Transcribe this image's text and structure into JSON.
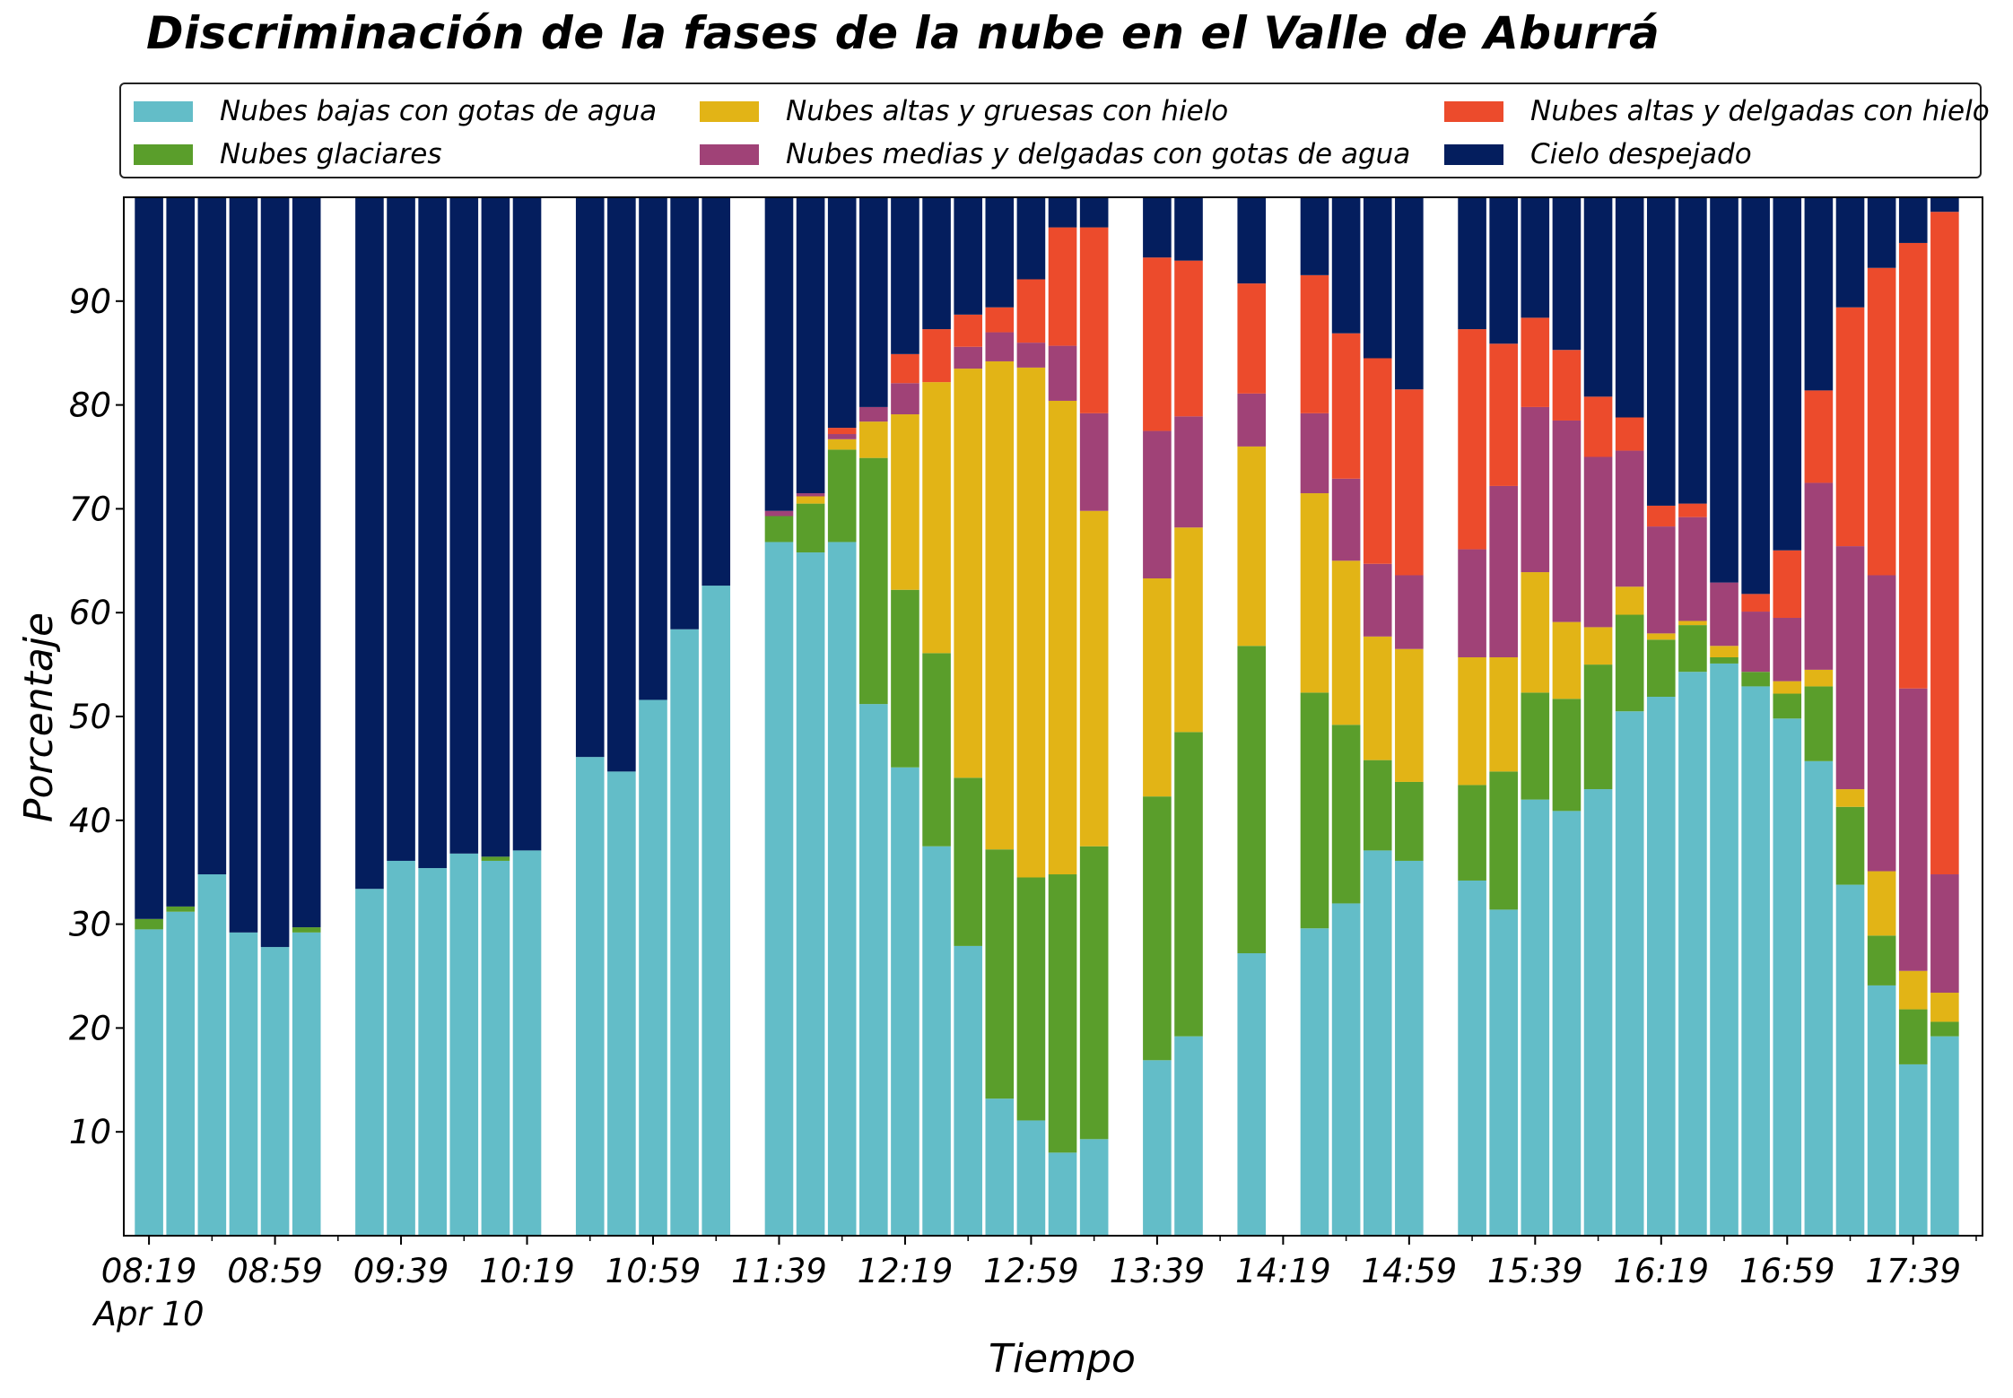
{
  "chart_data": {
    "type": "bar",
    "stacked": true,
    "title": "Discriminación de la fases de la nube en el Valle de Aburrá",
    "xlabel": "Tiempo",
    "ylabel": "Porcentaje",
    "ylim": [
      0,
      100
    ],
    "yticks": [
      10,
      20,
      30,
      40,
      50,
      60,
      70,
      80,
      90
    ],
    "xlim": [
      "08:11",
      "18:01"
    ],
    "bar_interval_minutes": 10,
    "xticks": [
      {
        "time": "08:19",
        "label": "08:19",
        "sublabel": "Apr 10"
      },
      {
        "time": "08:59",
        "label": "08:59"
      },
      {
        "time": "09:39",
        "label": "09:39"
      },
      {
        "time": "10:19",
        "label": "10:19"
      },
      {
        "time": "10:59",
        "label": "10:59"
      },
      {
        "time": "11:39",
        "label": "11:39"
      },
      {
        "time": "12:19",
        "label": "12:19"
      },
      {
        "time": "12:59",
        "label": "12:59"
      },
      {
        "time": "13:39",
        "label": "13:39"
      },
      {
        "time": "14:19",
        "label": "14:19"
      },
      {
        "time": "14:59",
        "label": "14:59"
      },
      {
        "time": "15:39",
        "label": "15:39"
      },
      {
        "time": "16:19",
        "label": "16:19"
      },
      {
        "time": "16:59",
        "label": "16:59"
      },
      {
        "time": "17:39",
        "label": "17:39"
      }
    ],
    "legend_position": "top",
    "series": [
      {
        "name": "Nubes bajas con gotas de agua",
        "color": "#63bdc8"
      },
      {
        "name": "Nubes glaciares",
        "color": "#5a9e2b"
      },
      {
        "name": "Nubes altas y gruesas con hielo",
        "color": "#e2b416"
      },
      {
        "name": "Nubes medias y delgadas con gotas de agua",
        "color": "#a04277"
      },
      {
        "name": "Nubes altas y delgadas con hielo",
        "color": "#ec4b2c"
      },
      {
        "name": "Cielo despejado",
        "color": "#041e5e"
      }
    ],
    "series_order_note": "values per bar: [bajas, glaciares, altas_gruesas, medias_delgadas, altas_delgadas, despejado]",
    "bars": [
      {
        "time": "08:19",
        "values": [
          29.5,
          1.0,
          0.0,
          0.0,
          0.0,
          69.5
        ]
      },
      {
        "time": "08:29",
        "values": [
          31.2,
          0.5,
          0.0,
          0.0,
          0.0,
          68.3
        ]
      },
      {
        "time": "08:39",
        "values": [
          34.8,
          0.0,
          0.0,
          0.0,
          0.0,
          65.2
        ]
      },
      {
        "time": "08:49",
        "values": [
          29.2,
          0.0,
          0.0,
          0.0,
          0.0,
          70.8
        ]
      },
      {
        "time": "08:59",
        "values": [
          27.8,
          0.0,
          0.0,
          0.0,
          0.0,
          72.2
        ]
      },
      {
        "time": "09:09",
        "values": [
          29.2,
          0.5,
          0.0,
          0.0,
          0.0,
          70.3
        ]
      },
      {
        "time": "09:29",
        "values": [
          33.4,
          0.0,
          0.0,
          0.0,
          0.0,
          66.6
        ]
      },
      {
        "time": "09:39",
        "values": [
          36.1,
          0.0,
          0.0,
          0.0,
          0.0,
          63.9
        ]
      },
      {
        "time": "09:49",
        "values": [
          35.4,
          0.0,
          0.0,
          0.0,
          0.0,
          64.6
        ]
      },
      {
        "time": "09:59",
        "values": [
          36.8,
          0.0,
          0.0,
          0.0,
          0.0,
          63.2
        ]
      },
      {
        "time": "10:09",
        "values": [
          36.1,
          0.4,
          0.0,
          0.0,
          0.0,
          63.5
        ]
      },
      {
        "time": "10:19",
        "values": [
          37.1,
          0.0,
          0.0,
          0.0,
          0.0,
          62.9
        ]
      },
      {
        "time": "10:39",
        "values": [
          46.1,
          0.0,
          0.0,
          0.0,
          0.0,
          53.9
        ]
      },
      {
        "time": "10:49",
        "values": [
          44.7,
          0.0,
          0.0,
          0.0,
          0.0,
          55.3
        ]
      },
      {
        "time": "10:59",
        "values": [
          51.6,
          0.0,
          0.0,
          0.0,
          0.0,
          48.4
        ]
      },
      {
        "time": "11:09",
        "values": [
          58.4,
          0.0,
          0.0,
          0.0,
          0.0,
          41.6
        ]
      },
      {
        "time": "11:19",
        "values": [
          62.6,
          0.0,
          0.0,
          0.0,
          0.0,
          37.4
        ]
      },
      {
        "time": "11:39",
        "values": [
          66.8,
          2.5,
          0.0,
          0.5,
          0.0,
          30.2
        ]
      },
      {
        "time": "11:49",
        "values": [
          65.8,
          4.7,
          0.7,
          0.3,
          0.0,
          28.5
        ]
      },
      {
        "time": "11:59",
        "values": [
          66.8,
          8.9,
          1.0,
          0.5,
          0.6,
          22.2
        ]
      },
      {
        "time": "12:09",
        "values": [
          51.2,
          23.7,
          3.5,
          1.4,
          0.0,
          20.2
        ]
      },
      {
        "time": "12:19",
        "values": [
          45.1,
          17.1,
          16.9,
          3.0,
          2.8,
          15.1
        ]
      },
      {
        "time": "12:29",
        "values": [
          37.5,
          18.6,
          26.1,
          0.0,
          5.1,
          12.7
        ]
      },
      {
        "time": "12:39",
        "values": [
          27.9,
          16.2,
          39.4,
          2.1,
          3.1,
          11.3
        ]
      },
      {
        "time": "12:49",
        "values": [
          13.2,
          24.0,
          47.0,
          2.8,
          2.4,
          10.6
        ]
      },
      {
        "time": "12:59",
        "values": [
          11.1,
          23.4,
          49.1,
          2.4,
          6.1,
          7.9
        ]
      },
      {
        "time": "13:09",
        "values": [
          8.0,
          26.8,
          45.6,
          5.3,
          11.4,
          2.9
        ]
      },
      {
        "time": "13:19",
        "values": [
          9.3,
          28.2,
          32.3,
          9.4,
          17.9,
          2.9
        ]
      },
      {
        "time": "13:39",
        "values": [
          16.9,
          25.4,
          21.0,
          14.2,
          16.7,
          5.8
        ]
      },
      {
        "time": "13:49",
        "values": [
          19.2,
          29.3,
          19.7,
          10.7,
          15.0,
          6.1
        ]
      },
      {
        "time": "14:09",
        "values": [
          27.2,
          29.6,
          19.2,
          5.1,
          10.6,
          8.3
        ]
      },
      {
        "time": "14:29",
        "values": [
          29.6,
          22.7,
          19.2,
          7.7,
          13.3,
          7.5
        ]
      },
      {
        "time": "14:39",
        "values": [
          32.0,
          17.2,
          15.8,
          7.9,
          14.0,
          13.1
        ]
      },
      {
        "time": "14:49",
        "values": [
          37.1,
          8.7,
          11.9,
          7.0,
          19.8,
          15.5
        ]
      },
      {
        "time": "14:59",
        "values": [
          36.1,
          7.6,
          12.8,
          7.1,
          17.9,
          18.5
        ]
      },
      {
        "time": "15:19",
        "values": [
          34.2,
          9.2,
          12.3,
          10.4,
          21.2,
          12.7
        ]
      },
      {
        "time": "15:29",
        "values": [
          31.4,
          13.3,
          11.0,
          16.5,
          13.7,
          14.1
        ]
      },
      {
        "time": "15:39",
        "values": [
          42.0,
          10.3,
          11.6,
          15.9,
          8.6,
          11.6
        ]
      },
      {
        "time": "15:49",
        "values": [
          40.9,
          10.8,
          7.4,
          19.4,
          6.8,
          14.7
        ]
      },
      {
        "time": "15:59",
        "values": [
          43.0,
          12.0,
          3.6,
          16.4,
          5.8,
          19.2
        ]
      },
      {
        "time": "16:09",
        "values": [
          50.5,
          9.3,
          2.7,
          13.1,
          3.2,
          21.2
        ]
      },
      {
        "time": "16:19",
        "values": [
          51.9,
          5.5,
          0.6,
          10.3,
          2.0,
          29.7
        ]
      },
      {
        "time": "16:29",
        "values": [
          54.3,
          4.5,
          0.4,
          10.0,
          1.3,
          29.5
        ]
      },
      {
        "time": "16:39",
        "values": [
          55.1,
          0.6,
          1.1,
          6.1,
          0.0,
          37.1
        ]
      },
      {
        "time": "16:49",
        "values": [
          52.9,
          1.4,
          0.0,
          5.8,
          1.7,
          38.2
        ]
      },
      {
        "time": "16:59",
        "values": [
          49.8,
          2.4,
          1.2,
          6.1,
          6.5,
          34.0
        ]
      },
      {
        "time": "17:09",
        "values": [
          45.7,
          7.2,
          1.6,
          18.0,
          8.9,
          18.6
        ]
      },
      {
        "time": "17:19",
        "values": [
          33.8,
          7.5,
          1.7,
          23.4,
          23.0,
          10.6
        ]
      },
      {
        "time": "17:29",
        "values": [
          24.1,
          4.8,
          6.2,
          28.5,
          29.6,
          6.8
        ]
      },
      {
        "time": "17:39",
        "values": [
          16.5,
          5.3,
          3.7,
          27.2,
          42.9,
          4.4
        ]
      },
      {
        "time": "17:49",
        "values": [
          19.2,
          1.4,
          2.8,
          11.4,
          63.8,
          1.4
        ]
      }
    ]
  }
}
